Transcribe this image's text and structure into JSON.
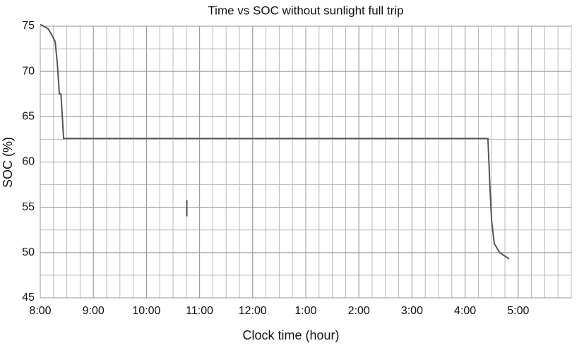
{
  "chart_data": {
    "type": "line",
    "title": "Time vs SOC without sunlight full trip",
    "x_label": "Clock time (hour)",
    "y_label": "SOC (%)",
    "x": [
      0,
      0.15,
      0.22,
      0.28,
      0.32,
      0.36,
      0.39,
      0.44,
      8.43,
      8.47,
      8.5,
      8.55,
      8.65,
      8.83,
      null,
      2.76,
      2.76
    ],
    "values": [
      75.2,
      74.7,
      74.0,
      73.3,
      71.0,
      67.5,
      67.5,
      62.6,
      62.6,
      57.0,
      53.5,
      51.0,
      50.0,
      49.3,
      null,
      55.8,
      54.0
    ],
    "color": "#555555",
    "xlim": [
      0,
      10
    ],
    "xticks": [
      {
        "value": 0,
        "label": "8:00"
      },
      {
        "value": 1,
        "label": "9:00"
      },
      {
        "value": 2,
        "label": "10:00"
      },
      {
        "value": 3,
        "label": "11:00"
      },
      {
        "value": 4,
        "label": "12:00"
      },
      {
        "value": 5,
        "label": "1:00"
      },
      {
        "value": 6,
        "label": "2:00"
      },
      {
        "value": 7,
        "label": "3:00"
      },
      {
        "value": 8,
        "label": "4:00"
      },
      {
        "value": 9,
        "label": "5:00"
      }
    ],
    "ylim": [
      45,
      75
    ],
    "yticks": [
      45,
      50,
      55,
      60,
      65,
      70,
      75
    ],
    "grid": true
  }
}
